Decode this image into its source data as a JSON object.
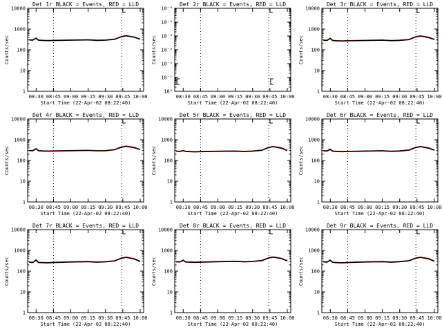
{
  "chart_data": [
    {
      "type": "line",
      "title": "Det 1r BLACK = Events, RED = LLD",
      "xlabel": "Start Time (22-Apr-02 08:22:40)",
      "ylabel": "Counts/sec",
      "scale": "log",
      "yticks": [
        "1",
        "10",
        "100",
        "1000",
        "10000"
      ],
      "xticks": [
        "08:30",
        "08:45",
        "09:00",
        "09:15",
        "09:30",
        "09:45",
        "10:00"
      ],
      "vlines": [
        "08:45",
        "09:44"
      ],
      "marker": "09:45",
      "series": [
        {
          "color": "#000000",
          "x": [
            "08:24",
            "08:27",
            "08:30",
            "08:32",
            "08:36",
            "08:40",
            "08:45",
            "09:00",
            "09:15",
            "09:23",
            "09:30",
            "09:38",
            "09:44",
            "09:48",
            "09:55",
            "10:00"
          ],
          "values": [
            300,
            290,
            360,
            290,
            280,
            275,
            280,
            290,
            300,
            285,
            290,
            320,
            430,
            470,
            400,
            320
          ]
        },
        {
          "color": "#ff0000",
          "x": [
            "08:24",
            "08:27",
            "08:30",
            "08:32",
            "08:36",
            "08:40",
            "08:45",
            "09:00",
            "09:15",
            "09:23",
            "09:30",
            "09:38",
            "09:44",
            "09:48",
            "09:55",
            "10:00"
          ],
          "values": [
            310,
            300,
            380,
            300,
            290,
            285,
            290,
            300,
            310,
            295,
            300,
            330,
            450,
            490,
            420,
            330
          ]
        }
      ]
    },
    {
      "type": "line",
      "title": "Det 2r BLACK = Events, RED = LLD",
      "xlabel": "Start Time (22-Apr-02 08:22:40)",
      "ylabel": "Counts/sec",
      "scale": "log",
      "yticks": [
        "10⁰",
        "10⁻¹",
        "10⁻²",
        "10⁻³",
        "10⁻⁴",
        "10⁻⁵",
        "10⁻⁶"
      ],
      "xticks": [
        "08:30",
        "08:45",
        "09:00",
        "09:15",
        "09:30",
        "09:45",
        "10:00"
      ],
      "vlines": [
        "08:45",
        "09:44"
      ],
      "marker": "09:45",
      "markers_bottom": [
        "08:24",
        "09:45"
      ],
      "series": []
    },
    {
      "type": "line",
      "title": "Det 3r BLACK = Events, RED = LLD",
      "xlabel": "Start Time (22-Apr-02 08:22:40)",
      "ylabel": "Counts/sec",
      "scale": "log",
      "yticks": [
        "1",
        "10",
        "100",
        "1000",
        "10000"
      ],
      "xticks": [
        "08:30",
        "08:45",
        "09:00",
        "09:15",
        "09:30",
        "09:45",
        "10:00"
      ],
      "vlines": [
        "08:45",
        "09:44"
      ],
      "marker": "09:45",
      "series": [
        {
          "color": "#000000",
          "x": [
            "08:24",
            "08:27",
            "08:30",
            "08:32",
            "08:36",
            "08:40",
            "08:45",
            "09:00",
            "09:15",
            "09:23",
            "09:30",
            "09:38",
            "09:44",
            "09:48",
            "09:55",
            "10:00"
          ],
          "values": [
            290,
            280,
            350,
            280,
            270,
            265,
            270,
            280,
            290,
            275,
            285,
            310,
            420,
            460,
            390,
            310
          ]
        },
        {
          "color": "#ff0000",
          "x": [
            "08:24",
            "08:27",
            "08:30",
            "08:32",
            "08:36",
            "08:40",
            "08:45",
            "09:00",
            "09:15",
            "09:23",
            "09:30",
            "09:38",
            "09:44",
            "09:48",
            "09:55",
            "10:00"
          ],
          "values": [
            300,
            290,
            370,
            290,
            280,
            275,
            280,
            290,
            300,
            285,
            295,
            320,
            440,
            480,
            410,
            320
          ]
        }
      ]
    },
    {
      "type": "line",
      "title": "Det 4r BLACK = Events, RED = LLD",
      "xlabel": "Start Time (22-Apr-02 08:22:40)",
      "ylabel": "Counts/sec",
      "scale": "log",
      "yticks": [
        "1",
        "10",
        "100",
        "1000",
        "10000"
      ],
      "xticks": [
        "08:30",
        "08:45",
        "09:00",
        "09:15",
        "09:30",
        "09:45",
        "10:00"
      ],
      "vlines": [
        "08:45",
        "09:44"
      ],
      "marker": "09:45",
      "series": [
        {
          "color": "#000000",
          "x": [
            "08:24",
            "08:27",
            "08:30",
            "08:32",
            "08:36",
            "08:40",
            "08:45",
            "09:00",
            "09:15",
            "09:23",
            "09:30",
            "09:38",
            "09:44",
            "09:48",
            "09:55",
            "10:00"
          ],
          "values": [
            300,
            295,
            360,
            295,
            285,
            280,
            285,
            295,
            305,
            290,
            295,
            330,
            440,
            480,
            410,
            330
          ]
        },
        {
          "color": "#ff0000",
          "x": [
            "08:24",
            "08:27",
            "08:30",
            "08:32",
            "08:36",
            "08:40",
            "08:45",
            "09:00",
            "09:15",
            "09:23",
            "09:30",
            "09:38",
            "09:44",
            "09:48",
            "09:55",
            "10:00"
          ],
          "values": [
            310,
            305,
            380,
            305,
            295,
            290,
            295,
            305,
            315,
            300,
            305,
            340,
            460,
            500,
            430,
            340
          ]
        }
      ]
    },
    {
      "type": "line",
      "title": "Det 5r BLACK = Events, RED = LLD",
      "xlabel": "Start Time (22-Apr-02 08:22:40)",
      "ylabel": "Counts/sec",
      "scale": "log",
      "yticks": [
        "1",
        "10",
        "100",
        "1000",
        "10000"
      ],
      "xticks": [
        "08:30",
        "08:45",
        "09:00",
        "09:15",
        "09:30",
        "09:45",
        "10:00"
      ],
      "vlines": [
        "08:45",
        "09:44"
      ],
      "marker": "09:45",
      "series": [
        {
          "color": "#000000",
          "x": [
            "08:24",
            "08:27",
            "08:30",
            "08:32",
            "08:36",
            "08:40",
            "08:45",
            "09:00",
            "09:15",
            "09:23",
            "09:30",
            "09:38",
            "09:44",
            "09:48",
            "09:55",
            "10:00"
          ],
          "values": [
            280,
            270,
            300,
            270,
            265,
            260,
            265,
            275,
            280,
            270,
            280,
            310,
            420,
            460,
            390,
            300
          ]
        },
        {
          "color": "#ff0000",
          "x": [
            "08:24",
            "08:27",
            "08:30",
            "08:32",
            "08:36",
            "08:40",
            "08:45",
            "09:00",
            "09:15",
            "09:23",
            "09:30",
            "09:38",
            "09:44",
            "09:48",
            "09:55",
            "10:00"
          ],
          "values": [
            290,
            280,
            310,
            280,
            275,
            270,
            275,
            285,
            290,
            280,
            290,
            320,
            440,
            480,
            410,
            310
          ]
        }
      ]
    },
    {
      "type": "line",
      "title": "Det 6r BLACK = Events, RED = LLD",
      "xlabel": "Start Time (22-Apr-02 08:22:40)",
      "ylabel": "Counts/sec",
      "scale": "log",
      "yticks": [
        "1",
        "10",
        "100",
        "1000",
        "10000"
      ],
      "xticks": [
        "08:30",
        "08:45",
        "09:00",
        "09:15",
        "09:30",
        "09:45",
        "10:00"
      ],
      "vlines": [
        "08:45",
        "09:44"
      ],
      "marker": "09:45",
      "series": [
        {
          "color": "#000000",
          "x": [
            "08:24",
            "08:27",
            "08:30",
            "08:32",
            "08:36",
            "08:40",
            "08:45",
            "09:00",
            "09:15",
            "09:23",
            "09:30",
            "09:38",
            "09:44",
            "09:48",
            "09:55",
            "10:00"
          ],
          "values": [
            290,
            285,
            340,
            280,
            270,
            265,
            270,
            280,
            290,
            275,
            285,
            315,
            420,
            460,
            390,
            310
          ]
        },
        {
          "color": "#ff0000",
          "x": [
            "08:24",
            "08:27",
            "08:30",
            "08:32",
            "08:36",
            "08:40",
            "08:45",
            "09:00",
            "09:15",
            "09:23",
            "09:30",
            "09:38",
            "09:44",
            "09:48",
            "09:55",
            "10:00"
          ],
          "values": [
            300,
            295,
            360,
            290,
            280,
            275,
            280,
            290,
            300,
            285,
            295,
            325,
            440,
            480,
            410,
            320
          ]
        }
      ]
    },
    {
      "type": "line",
      "title": "Det 7r BLACK = Events, RED = LLD",
      "xlabel": "Start Time (22-Apr-02 08:22:40)",
      "ylabel": "Counts/sec",
      "scale": "log",
      "yticks": [
        "1",
        "10",
        "100",
        "1000",
        "10000"
      ],
      "xticks": [
        "08:30",
        "08:45",
        "09:00",
        "09:15",
        "09:30",
        "09:45",
        "10:00"
      ],
      "vlines": [
        "08:45",
        "09:44"
      ],
      "marker": "09:45",
      "series": [
        {
          "color": "#000000",
          "x": [
            "08:24",
            "08:27",
            "08:30",
            "08:32",
            "08:36",
            "08:40",
            "08:45",
            "09:00",
            "09:15",
            "09:23",
            "09:30",
            "09:38",
            "09:44",
            "09:48",
            "09:55",
            "10:00"
          ],
          "values": [
            270,
            260,
            340,
            260,
            255,
            250,
            260,
            275,
            285,
            270,
            280,
            310,
            420,
            460,
            380,
            290
          ]
        },
        {
          "color": "#ff0000",
          "x": [
            "08:24",
            "08:27",
            "08:30",
            "08:32",
            "08:36",
            "08:40",
            "08:45",
            "09:00",
            "09:15",
            "09:23",
            "09:30",
            "09:38",
            "09:44",
            "09:48",
            "09:55",
            "10:00"
          ],
          "values": [
            280,
            270,
            360,
            270,
            265,
            260,
            270,
            285,
            295,
            280,
            290,
            320,
            440,
            480,
            400,
            300
          ]
        }
      ]
    },
    {
      "type": "line",
      "title": "Det 8r BLACK = Events, RED = LLD",
      "xlabel": "Start Time (22-Apr-02 08:22:40)",
      "ylabel": "Counts/sec",
      "scale": "log",
      "yticks": [
        "1",
        "10",
        "100",
        "1000",
        "10000"
      ],
      "xticks": [
        "08:30",
        "08:45",
        "09:00",
        "09:15",
        "09:30",
        "09:45",
        "10:00"
      ],
      "vlines": [
        "08:45",
        "09:44"
      ],
      "marker": "09:45",
      "series": [
        {
          "color": "#000000",
          "x": [
            "08:24",
            "08:27",
            "08:30",
            "08:32",
            "08:36",
            "08:40",
            "08:45",
            "09:00",
            "09:15",
            "09:23",
            "09:30",
            "09:38",
            "09:44",
            "09:48",
            "09:55",
            "10:00"
          ],
          "values": [
            280,
            275,
            330,
            275,
            270,
            265,
            270,
            285,
            295,
            280,
            290,
            320,
            430,
            470,
            400,
            310
          ]
        },
        {
          "color": "#ff0000",
          "x": [
            "08:24",
            "08:27",
            "08:30",
            "08:32",
            "08:36",
            "08:40",
            "08:45",
            "09:00",
            "09:15",
            "09:23",
            "09:30",
            "09:38",
            "09:44",
            "09:48",
            "09:55",
            "10:00"
          ],
          "values": [
            290,
            285,
            350,
            285,
            280,
            275,
            280,
            295,
            305,
            290,
            300,
            330,
            450,
            490,
            420,
            320
          ]
        }
      ]
    },
    {
      "type": "line",
      "title": "Det 9r BLACK = Events, RED = LLD",
      "xlabel": "Start Time (22-Apr-02 08:22:40)",
      "ylabel": "Counts/sec",
      "scale": "log",
      "yticks": [
        "1",
        "10",
        "100",
        "1000",
        "10000"
      ],
      "xticks": [
        "08:30",
        "08:45",
        "09:00",
        "09:15",
        "09:30",
        "09:45",
        "10:00"
      ],
      "vlines": [
        "08:45",
        "09:44"
      ],
      "marker": "09:45",
      "series": [
        {
          "color": "#000000",
          "x": [
            "08:24",
            "08:27",
            "08:30",
            "08:32",
            "08:36",
            "08:40",
            "08:45",
            "09:00",
            "09:15",
            "09:23",
            "09:30",
            "09:38",
            "09:44",
            "09:48",
            "09:55",
            "10:00"
          ],
          "values": [
            280,
            270,
            330,
            265,
            255,
            250,
            260,
            275,
            285,
            270,
            285,
            315,
            420,
            460,
            390,
            300
          ]
        },
        {
          "color": "#ff0000",
          "x": [
            "08:24",
            "08:27",
            "08:30",
            "08:32",
            "08:36",
            "08:40",
            "08:45",
            "09:00",
            "09:15",
            "09:23",
            "09:30",
            "09:38",
            "09:44",
            "09:48",
            "09:55",
            "10:00"
          ],
          "values": [
            290,
            280,
            350,
            275,
            265,
            260,
            270,
            285,
            295,
            280,
            295,
            325,
            440,
            480,
            410,
            310
          ]
        }
      ]
    }
  ]
}
